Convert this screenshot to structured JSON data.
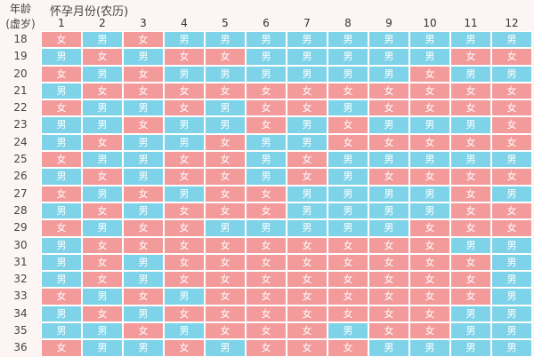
{
  "header": {
    "age_label_1": "年龄",
    "age_label_2": "(虚岁)",
    "title": "怀孕月份(农历)"
  },
  "months": [
    "1",
    "2",
    "3",
    "4",
    "5",
    "6",
    "7",
    "8",
    "9",
    "10",
    "11",
    "12"
  ],
  "labels": {
    "B": "男",
    "G": "女"
  },
  "colors": {
    "girl": "#f39a9b",
    "boy": "#7fd3e9"
  },
  "rows": [
    {
      "age": "18",
      "cells": "GBGBBBBBBBBB"
    },
    {
      "age": "19",
      "cells": "BGBGGBBBBBGG"
    },
    {
      "age": "20",
      "cells": "GBGBBBBBBGBB"
    },
    {
      "age": "21",
      "cells": "BGGGGGGGGGGG"
    },
    {
      "age": "22",
      "cells": "GBBGBGGBGGGG"
    },
    {
      "age": "23",
      "cells": "BBGBBGBGBBBG"
    },
    {
      "age": "24",
      "cells": "BGBBGBBGGGGG"
    },
    {
      "age": "25",
      "cells": "GBBGGBGBBBBB"
    },
    {
      "age": "26",
      "cells": "BGBGGBGBGGGG"
    },
    {
      "age": "27",
      "cells": "GBGBGGBBBBGB"
    },
    {
      "age": "28",
      "cells": "BGBGGGBBBBGG"
    },
    {
      "age": "29",
      "cells": "GBGGBBBBBGGG"
    },
    {
      "age": "30",
      "cells": "BGGGGGGGGGBB"
    },
    {
      "age": "31",
      "cells": "BGBGGGGGGGGB"
    },
    {
      "age": "32",
      "cells": "BGBGGGGGGGGB"
    },
    {
      "age": "33",
      "cells": "GBGBGGGGGGGB"
    },
    {
      "age": "34",
      "cells": "BGBGGGGGGGBB"
    },
    {
      "age": "35",
      "cells": "BBGBGGGBGGBB"
    },
    {
      "age": "36",
      "cells": "GBBGBGGGBBBB"
    }
  ]
}
